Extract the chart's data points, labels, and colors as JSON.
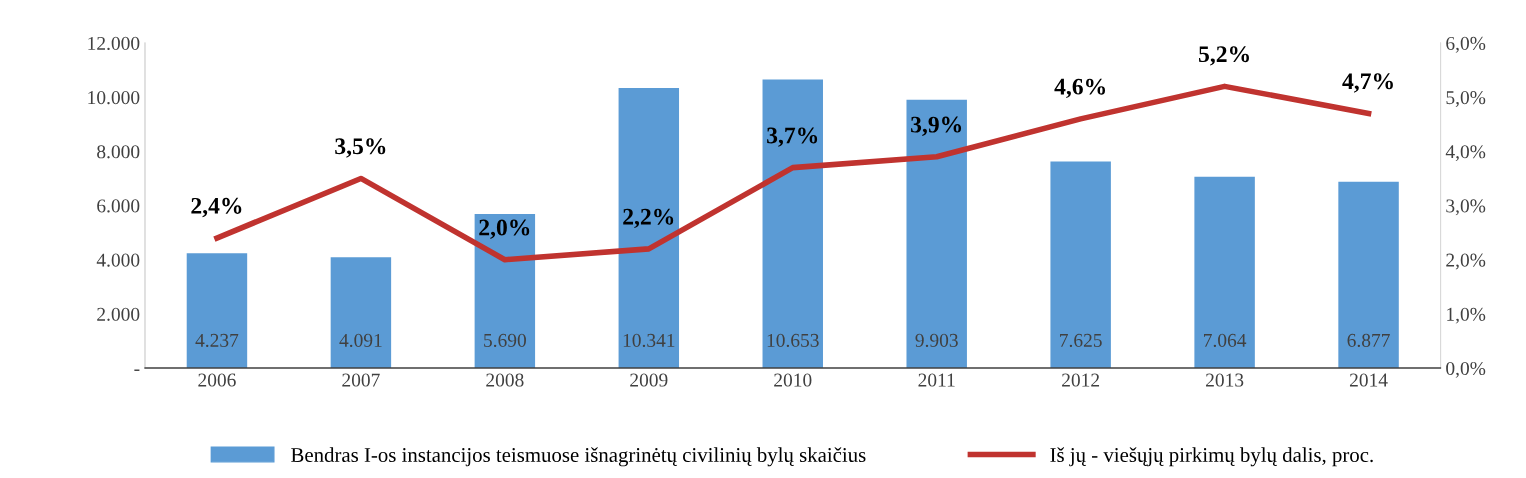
{
  "chart_data": {
    "type": "bar",
    "categories": [
      "2006",
      "2007",
      "2008",
      "2009",
      "2010",
      "2011",
      "2012",
      "2013",
      "2014"
    ],
    "series": [
      {
        "name": "Bendras I-os instancijos teismuose išnagrinėtų civilinių bylų skaičius",
        "color": "#5b9bd5",
        "values": [
          4237,
          4091,
          5690,
          10341,
          10653,
          9903,
          7625,
          7064,
          6877
        ],
        "value_labels": [
          "4.237",
          "4.091",
          "5.690",
          "10.341",
          "10.653",
          "9.903",
          "7.625",
          "7.064",
          "6.877"
        ]
      },
      {
        "name": "Iš jų - viešųjų pirkimų bylų dalis, proc.",
        "type": "line",
        "axis": "y2",
        "color": "#c0332f",
        "values": [
          2.4,
          3.5,
          2.0,
          2.2,
          3.7,
          3.9,
          4.6,
          5.2,
          4.7
        ],
        "value_labels": [
          "2,4%",
          "3,5%",
          "2,0%",
          "2,2%",
          "3,7%",
          "3,9%",
          "4,6%",
          "5,2%",
          "4,7%"
        ]
      }
    ],
    "ylim": [
      0,
      12000
    ],
    "yticks": [
      {
        "value": 0,
        "label": "-"
      },
      {
        "value": 2000,
        "label": "2.000"
      },
      {
        "value": 4000,
        "label": "4.000"
      },
      {
        "value": 6000,
        "label": "6.000"
      },
      {
        "value": 8000,
        "label": "8.000"
      },
      {
        "value": 10000,
        "label": "10.000"
      },
      {
        "value": 12000,
        "label": "12.000"
      }
    ],
    "y2lim": [
      0,
      6
    ],
    "y2ticks": [
      {
        "value": 0,
        "label": "0,0%"
      },
      {
        "value": 1,
        "label": "1,0%"
      },
      {
        "value": 2,
        "label": "2,0%"
      },
      {
        "value": 3,
        "label": "3,0%"
      },
      {
        "value": 4,
        "label": "4,0%"
      },
      {
        "value": 5,
        "label": "5,0%"
      },
      {
        "value": 6,
        "label": "6,0%"
      }
    ],
    "grid": false,
    "legend": "bottom",
    "marker": "none",
    "line_style": "solid"
  }
}
